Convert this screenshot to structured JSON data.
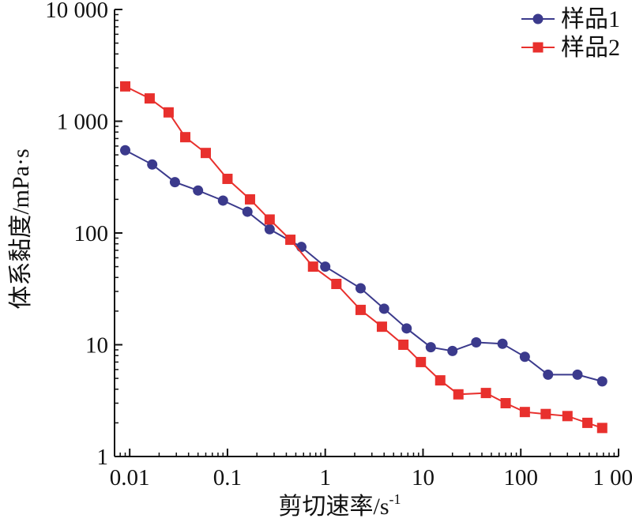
{
  "chart_data": {
    "type": "line",
    "x_scale": "log",
    "y_scale": "log",
    "xlim": [
      0.007,
      1000
    ],
    "ylim": [
      1,
      10000
    ],
    "grid": false,
    "legend_position": "top-right",
    "xlabel": "剪切速率/s",
    "xlabel_sup": "-1",
    "ylabel": "体系黏度/mPa·s",
    "x_ticks": [
      {
        "value": 0.01,
        "label": "0.01"
      },
      {
        "value": 0.1,
        "label": "0.1"
      },
      {
        "value": 1,
        "label": "1"
      },
      {
        "value": 10,
        "label": "10"
      },
      {
        "value": 100,
        "label": "100"
      },
      {
        "value": 1000,
        "label": "1 000"
      }
    ],
    "y_ticks": [
      {
        "value": 1,
        "label": "1"
      },
      {
        "value": 10,
        "label": "10"
      },
      {
        "value": 100,
        "label": "100"
      },
      {
        "value": 1000,
        "label": "1 000"
      },
      {
        "value": 10000,
        "label": "10 000"
      }
    ],
    "series": [
      {
        "name": "样品1",
        "color": "#3b3a8c",
        "marker": "circle",
        "points": [
          [
            0.009,
            550
          ],
          [
            0.017,
            410
          ],
          [
            0.029,
            285
          ],
          [
            0.05,
            240
          ],
          [
            0.09,
            195
          ],
          [
            0.16,
            155
          ],
          [
            0.27,
            108
          ],
          [
            0.57,
            75
          ],
          [
            1.0,
            50
          ],
          [
            2.3,
            32
          ],
          [
            4.0,
            21
          ],
          [
            6.8,
            14
          ],
          [
            12,
            9.5
          ],
          [
            20,
            8.8
          ],
          [
            35,
            10.5
          ],
          [
            65,
            10.2
          ],
          [
            110,
            7.8
          ],
          [
            190,
            5.4
          ],
          [
            380,
            5.4
          ],
          [
            680,
            4.7
          ]
        ]
      },
      {
        "name": "样品2",
        "color": "#e8302d",
        "marker": "square",
        "points": [
          [
            0.009,
            2050
          ],
          [
            0.016,
            1600
          ],
          [
            0.025,
            1200
          ],
          [
            0.037,
            720
          ],
          [
            0.06,
            520
          ],
          [
            0.1,
            305
          ],
          [
            0.17,
            200
          ],
          [
            0.27,
            132
          ],
          [
            0.44,
            87
          ],
          [
            0.75,
            50
          ],
          [
            1.3,
            35
          ],
          [
            2.3,
            20.5
          ],
          [
            3.8,
            14.5
          ],
          [
            6.3,
            10
          ],
          [
            9.5,
            7
          ],
          [
            15,
            4.8
          ],
          [
            23,
            3.6
          ],
          [
            44,
            3.7
          ],
          [
            70,
            3.0
          ],
          [
            110,
            2.5
          ],
          [
            180,
            2.4
          ],
          [
            300,
            2.3
          ],
          [
            480,
            2.0
          ],
          [
            680,
            1.8
          ]
        ]
      }
    ]
  }
}
